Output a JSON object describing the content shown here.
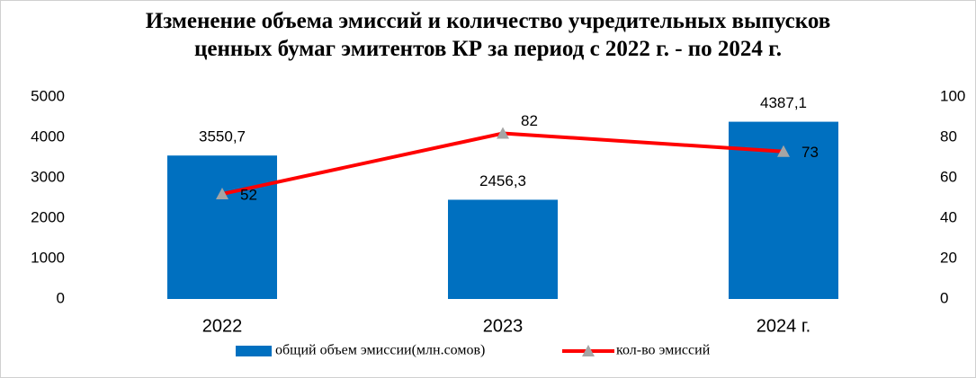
{
  "chart_data": {
    "type": "combo",
    "title": "Изменение объема эмиссий и количество учредительных выпусков ценных бумаг эмитентов КР за период с 2022 г. -  по 2024 г.",
    "categories": [
      "2022",
      "2023",
      "2024 г."
    ],
    "series": [
      {
        "name": "общий объем эмиссии(млн.сомов)",
        "type": "bar",
        "color": "#0070c0",
        "values": [
          3550.7,
          2456.3,
          4387.1
        ],
        "value_labels": [
          "3550,7",
          "2456,3",
          "4387,1"
        ]
      },
      {
        "name": "кол-во эмиссий",
        "type": "line",
        "axis": "y2",
        "color": "#ff0000",
        "marker_color": "#a5a5a5",
        "values": [
          52,
          82,
          73
        ]
      }
    ],
    "ylim": [
      0,
      5000
    ],
    "yticks": [
      0,
      1000,
      2000,
      3000,
      4000,
      5000
    ],
    "y2lim": [
      0,
      100
    ],
    "y2ticks": [
      0,
      20,
      40,
      60,
      80,
      100
    ],
    "legend": "bottom"
  }
}
